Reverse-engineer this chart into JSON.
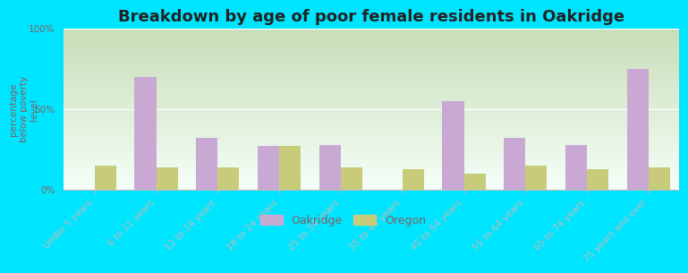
{
  "title": "Breakdown by age of poor female residents in Oakridge",
  "ylabel": "percentage\nbelow poverty\nlevel",
  "categories": [
    "Under 5 years",
    "6 to 11 years",
    "12 to 14 years",
    "18 to 24 years",
    "25 to 34 years",
    "35 to 44 years",
    "45 to 54 years",
    "55 to 64 years",
    "65 to 74 years",
    "75 years and over"
  ],
  "oakridge_values": [
    0,
    70,
    32,
    27,
    28,
    0,
    55,
    32,
    28,
    75
  ],
  "oregon_values": [
    15,
    14,
    14,
    27,
    14,
    13,
    10,
    15,
    13,
    14
  ],
  "oakridge_color": "#c9a8d4",
  "oregon_color": "#c8cc7a",
  "outer_bg": "#00e5ff",
  "ylim": [
    0,
    100
  ],
  "yticks": [
    0,
    50,
    100
  ],
  "ytick_labels": [
    "0%",
    "50%",
    "100%"
  ],
  "title_fontsize": 13,
  "axis_label_fontsize": 7.5,
  "tick_fontsize": 7.5,
  "bar_width": 0.35,
  "legend_labels": [
    "Oakridge",
    "Oregon"
  ],
  "legend_fontsize": 9
}
